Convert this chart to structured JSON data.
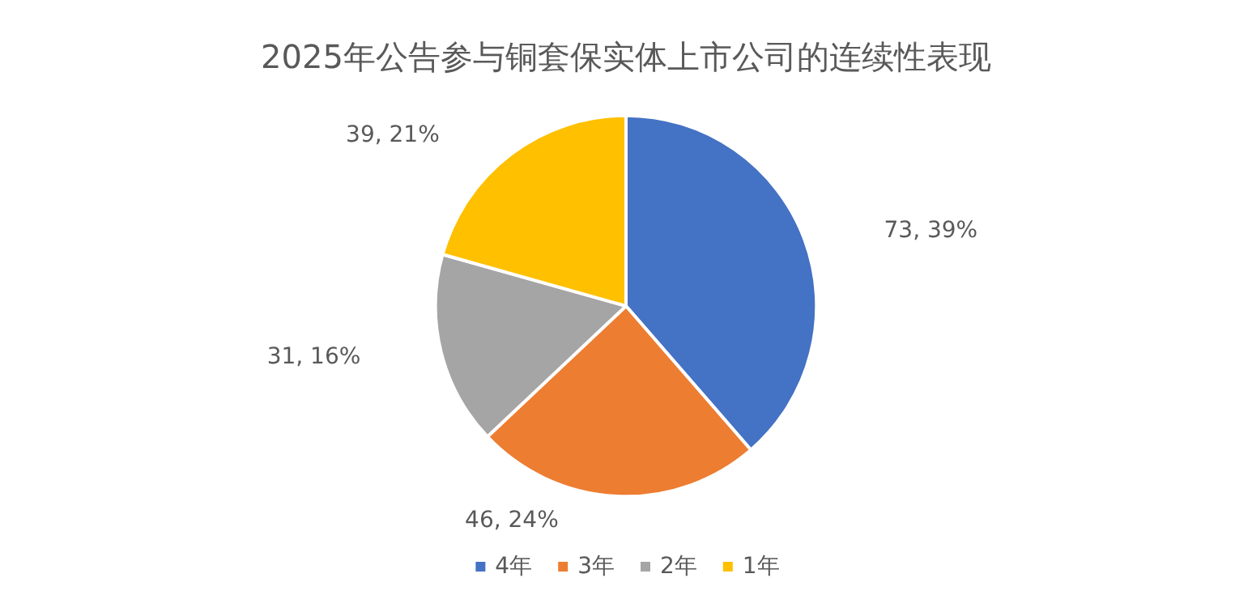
{
  "chart_data": {
    "type": "pie",
    "title": "2025年公告参与铜套保实体上市公司的连续性表现",
    "categories": [
      "4年",
      "3年",
      "2年",
      "1年"
    ],
    "values": [
      73,
      46,
      31,
      39
    ],
    "colors": [
      "#4472c4",
      "#ed7d31",
      "#a5a5a5",
      "#ffc000"
    ],
    "value_labels": [
      "73, 39%",
      "46, 24%",
      "31, 16%",
      "39, 21%"
    ],
    "legend": "bottom"
  }
}
